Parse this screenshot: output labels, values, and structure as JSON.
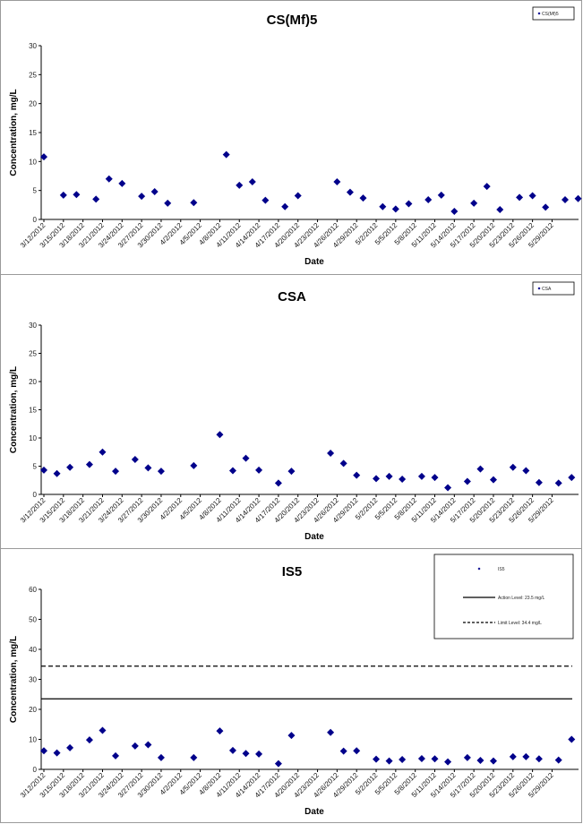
{
  "chart_data": [
    {
      "type": "scatter",
      "title": "CS(Mf)5",
      "xlabel": "Date",
      "ylabel": "Concentration, mg/L",
      "ylim": [
        0,
        30
      ],
      "yticks": [
        0,
        5,
        10,
        15,
        20,
        25,
        30
      ],
      "xlim": [
        "3/12/2012",
        "5/31/2012"
      ],
      "xticks": [
        "3/12/2012",
        "3/15/2012",
        "3/18/2012",
        "3/21/2012",
        "3/24/2012",
        "3/27/2012",
        "3/30/2012",
        "4/2/2012",
        "4/5/2012",
        "4/8/2012",
        "4/11/2012",
        "4/14/2012",
        "4/17/2012",
        "4/20/2012",
        "4/23/2012",
        "4/26/2012",
        "4/29/2012",
        "5/2/2012",
        "5/5/2012",
        "5/8/2012",
        "5/11/2012",
        "5/14/2012",
        "5/17/2012",
        "5/20/2012",
        "5/23/2012",
        "5/26/2012",
        "5/29/2012"
      ],
      "grid": false,
      "legend": "top-right",
      "series": [
        {
          "name": "CS(Mf)5",
          "marker": "diamond",
          "color": "#00008B",
          "points": [
            {
              "x": "3/12/2012",
              "y": 10.8
            },
            {
              "x": "3/15/2012",
              "y": 4.2
            },
            {
              "x": "3/17/2012",
              "y": 4.3
            },
            {
              "x": "3/20/2012",
              "y": 3.5
            },
            {
              "x": "3/22/2012",
              "y": 7.0
            },
            {
              "x": "3/24/2012",
              "y": 6.2
            },
            {
              "x": "3/27/2012",
              "y": 4.0
            },
            {
              "x": "3/29/2012",
              "y": 4.8
            },
            {
              "x": "3/31/2012",
              "y": 2.8
            },
            {
              "x": "4/4/2012",
              "y": 2.9
            },
            {
              "x": "4/9/2012",
              "y": 11.2
            },
            {
              "x": "4/11/2012",
              "y": 5.9
            },
            {
              "x": "4/13/2012",
              "y": 6.5
            },
            {
              "x": "4/15/2012",
              "y": 3.3
            },
            {
              "x": "4/18/2012",
              "y": 2.2
            },
            {
              "x": "4/20/2012",
              "y": 4.1
            },
            {
              "x": "4/26/2012",
              "y": 6.5
            },
            {
              "x": "4/28/2012",
              "y": 4.7
            },
            {
              "x": "4/30/2012",
              "y": 3.7
            },
            {
              "x": "5/3/2012",
              "y": 2.2
            },
            {
              "x": "5/5/2012",
              "y": 1.8
            },
            {
              "x": "5/7/2012",
              "y": 2.7
            },
            {
              "x": "5/10/2012",
              "y": 3.4
            },
            {
              "x": "5/12/2012",
              "y": 4.2
            },
            {
              "x": "5/14/2012",
              "y": 1.4
            },
            {
              "x": "5/17/2012",
              "y": 2.8
            },
            {
              "x": "5/19/2012",
              "y": 5.7
            },
            {
              "x": "5/21/2012",
              "y": 1.7
            },
            {
              "x": "5/24/2012",
              "y": 3.8
            },
            {
              "x": "5/26/2012",
              "y": 4.1
            },
            {
              "x": "5/28/2012",
              "y": 2.1
            },
            {
              "x": "5/31/2012",
              "y": 3.4
            },
            {
              "x": "6/2/2012",
              "y": 3.6
            }
          ]
        }
      ]
    },
    {
      "type": "scatter",
      "title": "CSA",
      "xlabel": "Date",
      "ylabel": "Concentration, mg/L",
      "ylim": [
        0,
        30
      ],
      "yticks": [
        0,
        5,
        10,
        15,
        20,
        25,
        30
      ],
      "xlim": [
        "3/12/2012",
        "5/31/2012"
      ],
      "xticks": [
        "3/12/2012",
        "3/15/2012",
        "3/18/2012",
        "3/21/2012",
        "3/24/2012",
        "3/27/2012",
        "3/30/2012",
        "4/2/2012",
        "4/5/2012",
        "4/8/2012",
        "4/11/2012",
        "4/14/2012",
        "4/17/2012",
        "4/20/2012",
        "4/23/2012",
        "4/26/2012",
        "4/29/2012",
        "5/2/2012",
        "5/5/2012",
        "5/8/2012",
        "5/11/2012",
        "5/14/2012",
        "5/17/2012",
        "5/20/2012",
        "5/23/2012",
        "5/26/2012",
        "5/29/2012"
      ],
      "grid": false,
      "legend": "top-right",
      "series": [
        {
          "name": "CSA",
          "marker": "diamond",
          "color": "#00008B",
          "points": [
            {
              "x": "3/12/2012",
              "y": 4.3
            },
            {
              "x": "3/14/2012",
              "y": 3.7
            },
            {
              "x": "3/16/2012",
              "y": 4.8
            },
            {
              "x": "3/19/2012",
              "y": 5.3
            },
            {
              "x": "3/21/2012",
              "y": 7.5
            },
            {
              "x": "3/23/2012",
              "y": 4.1
            },
            {
              "x": "3/26/2012",
              "y": 6.2
            },
            {
              "x": "3/28/2012",
              "y": 4.7
            },
            {
              "x": "3/30/2012",
              "y": 4.1
            },
            {
              "x": "4/4/2012",
              "y": 5.1
            },
            {
              "x": "4/8/2012",
              "y": 10.6
            },
            {
              "x": "4/10/2012",
              "y": 4.2
            },
            {
              "x": "4/12/2012",
              "y": 6.4
            },
            {
              "x": "4/14/2012",
              "y": 4.3
            },
            {
              "x": "4/17/2012",
              "y": 2.0
            },
            {
              "x": "4/19/2012",
              "y": 4.1
            },
            {
              "x": "4/25/2012",
              "y": 7.3
            },
            {
              "x": "4/27/2012",
              "y": 5.5
            },
            {
              "x": "4/29/2012",
              "y": 3.4
            },
            {
              "x": "5/2/2012",
              "y": 2.8
            },
            {
              "x": "5/4/2012",
              "y": 3.2
            },
            {
              "x": "5/6/2012",
              "y": 2.7
            },
            {
              "x": "5/9/2012",
              "y": 3.2
            },
            {
              "x": "5/11/2012",
              "y": 3.0
            },
            {
              "x": "5/13/2012",
              "y": 1.2
            },
            {
              "x": "5/16/2012",
              "y": 2.3
            },
            {
              "x": "5/18/2012",
              "y": 4.5
            },
            {
              "x": "5/20/2012",
              "y": 2.6
            },
            {
              "x": "5/23/2012",
              "y": 4.8
            },
            {
              "x": "5/25/2012",
              "y": 4.2
            },
            {
              "x": "5/27/2012",
              "y": 2.1
            },
            {
              "x": "5/30/2012",
              "y": 2.0
            },
            {
              "x": "6/1/2012",
              "y": 3.0
            }
          ]
        }
      ]
    },
    {
      "type": "scatter",
      "title": "IS5",
      "xlabel": "Date",
      "ylabel": "Concentration, mg/L",
      "ylim": [
        0,
        60
      ],
      "yticks": [
        0,
        10,
        20,
        30,
        40,
        50,
        60
      ],
      "xlim": [
        "3/12/2012",
        "5/31/2012"
      ],
      "xticks": [
        "3/12/2012",
        "3/15/2012",
        "3/18/2012",
        "3/21/2012",
        "3/24/2012",
        "3/27/2012",
        "3/30/2012",
        "4/2/2012",
        "4/5/2012",
        "4/8/2012",
        "4/11/2012",
        "4/14/2012",
        "4/17/2012",
        "4/20/2012",
        "4/23/2012",
        "4/26/2012",
        "4/29/2012",
        "5/2/2012",
        "5/5/2012",
        "5/8/2012",
        "5/11/2012",
        "5/14/2012",
        "5/17/2012",
        "5/20/2012",
        "5/23/2012",
        "5/26/2012",
        "5/29/2012"
      ],
      "grid": false,
      "legend": "top-right",
      "series": [
        {
          "name": "IS5",
          "marker": "diamond",
          "color": "#00008B",
          "points": [
            {
              "x": "3/12/2012",
              "y": 6.2
            },
            {
              "x": "3/14/2012",
              "y": 5.5
            },
            {
              "x": "3/16/2012",
              "y": 7.2
            },
            {
              "x": "3/19/2012",
              "y": 9.8
            },
            {
              "x": "3/21/2012",
              "y": 13.0
            },
            {
              "x": "3/23/2012",
              "y": 4.5
            },
            {
              "x": "3/26/2012",
              "y": 7.8
            },
            {
              "x": "3/28/2012",
              "y": 8.2
            },
            {
              "x": "3/30/2012",
              "y": 3.9
            },
            {
              "x": "4/4/2012",
              "y": 3.9
            },
            {
              "x": "4/8/2012",
              "y": 12.8
            },
            {
              "x": "4/10/2012",
              "y": 6.3
            },
            {
              "x": "4/12/2012",
              "y": 5.3
            },
            {
              "x": "4/14/2012",
              "y": 5.1
            },
            {
              "x": "4/17/2012",
              "y": 1.9
            },
            {
              "x": "4/19/2012",
              "y": 11.3
            },
            {
              "x": "4/25/2012",
              "y": 12.3
            },
            {
              "x": "4/27/2012",
              "y": 6.1
            },
            {
              "x": "4/29/2012",
              "y": 6.2
            },
            {
              "x": "5/2/2012",
              "y": 3.4
            },
            {
              "x": "5/4/2012",
              "y": 2.8
            },
            {
              "x": "5/6/2012",
              "y": 3.3
            },
            {
              "x": "5/9/2012",
              "y": 3.6
            },
            {
              "x": "5/11/2012",
              "y": 3.5
            },
            {
              "x": "5/13/2012",
              "y": 2.5
            },
            {
              "x": "5/16/2012",
              "y": 3.9
            },
            {
              "x": "5/18/2012",
              "y": 3.0
            },
            {
              "x": "5/20/2012",
              "y": 2.8
            },
            {
              "x": "5/23/2012",
              "y": 4.2
            },
            {
              "x": "5/25/2012",
              "y": 4.2
            },
            {
              "x": "5/27/2012",
              "y": 3.5
            },
            {
              "x": "5/30/2012",
              "y": 3.1
            },
            {
              "x": "6/1/2012",
              "y": 10.0
            }
          ]
        }
      ],
      "reference_lines": [
        {
          "name": "Action Level: 23.5 mg/L",
          "y": 23.5,
          "style": "solid",
          "color": "#000000"
        },
        {
          "name": "Limit Level: 34.4 mg/L",
          "y": 34.4,
          "style": "dashed",
          "color": "#000000"
        }
      ]
    }
  ]
}
